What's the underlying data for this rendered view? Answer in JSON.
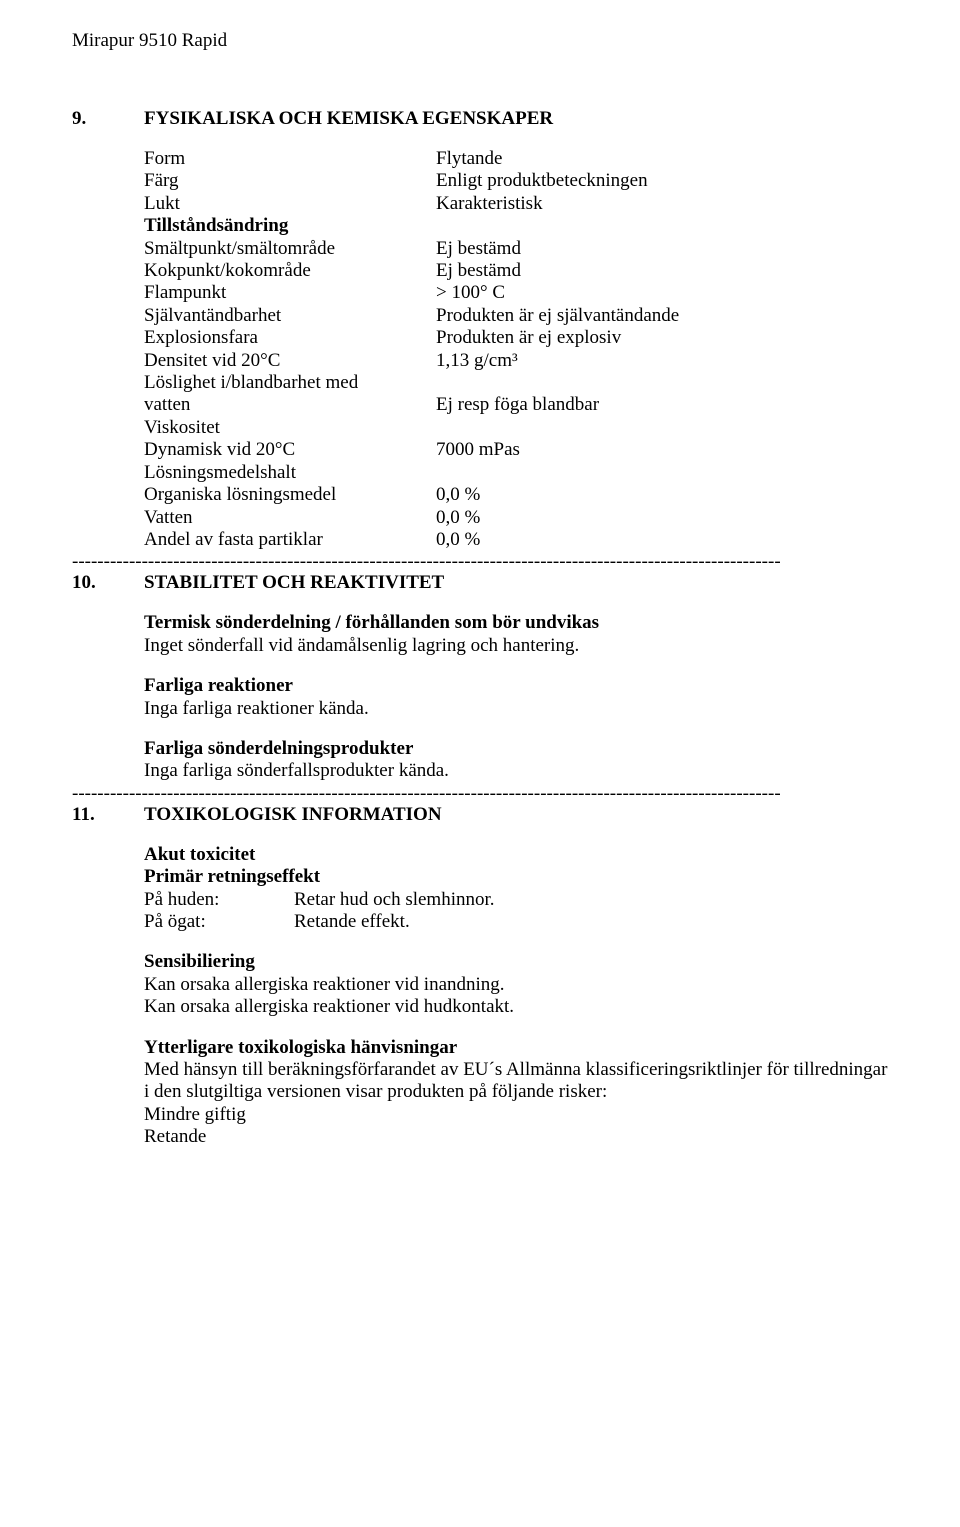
{
  "doc": {
    "title": "Mirapur 9510 Rapid"
  },
  "sec9": {
    "num": "9.",
    "heading": "FYSIKALISKA OCH KEMISKA EGENSKAPER",
    "rows": {
      "form_l": "Form",
      "form_v": "Flytande",
      "color_l": "Färg",
      "color_v": "Enligt produktbeteckningen",
      "odor_l": "Lukt",
      "odor_v": "Karakteristisk",
      "state_change": "Tillståndsändring",
      "melt_l": "Smältpunkt/smältområde",
      "melt_v": "Ej bestämd",
      "boil_l": "Kokpunkt/kokområde",
      "boil_v": "Ej bestämd",
      "flash_l": "Flampunkt",
      "flash_v": "> 100° C",
      "selfig_l": "Självantändbarhet",
      "selfig_v": "Produkten är ej självantändande",
      "expl_l": "Explosionsfara",
      "expl_v": "Produkten är ej explosiv",
      "dens_l": "Densitet vid 20°C",
      "dens_v": "1,13 g/cm³",
      "sol_l1": "Löslighet i/blandbarhet med",
      "sol_l2": "vatten",
      "sol_v": "Ej resp föga blandbar",
      "visc_h": "Viskositet",
      "dyn_l": "Dynamisk vid 20°C",
      "dyn_v": "7000 mPas",
      "solv_h": "Lösningsmedelshalt",
      "org_l": "Organiska lösningsmedel",
      "org_v": "0,0 %",
      "water_l": "Vatten",
      "water_v": "0,0 %",
      "solids_l": "Andel av fasta partiklar",
      "solids_v": "0,0 %"
    }
  },
  "sec10": {
    "num": "10.",
    "heading": "STABILITET OCH REAKTIVITET",
    "thermal_h": "Termisk sönderdelning / förhållanden som bör undvikas",
    "thermal_t": "Inget sönderfall vid ändamålsenlig lagring och hantering.",
    "react_h": "Farliga reaktioner",
    "react_t": "Inga farliga reaktioner kända.",
    "decomp_h": "Farliga sönderdelningsprodukter",
    "decomp_t": "Inga farliga sönderfallsprodukter kända."
  },
  "sec11": {
    "num": "11.",
    "heading": "TOXIKOLOGISK INFORMATION",
    "acute_h": "Akut toxicitet",
    "primary_h": "Primär retningseffekt",
    "skin_l": "På huden:",
    "skin_v": "Retar hud och slemhinnor.",
    "eye_l": "På ögat:",
    "eye_v": "Retande effekt.",
    "sens_h": "Sensibiliering",
    "sens_t1": "Kan orsaka allergiska reaktioner vid inandning.",
    "sens_t2": "Kan orsaka allergiska reaktioner vid hudkontakt.",
    "add_h": "Ytterligare toxikologiska hänvisningar",
    "add_t1": "Med hänsyn till beräkningsförfarandet av EU´s Allmänna klassificeringsriktlinjer för tillredningar i den slutgiltiga versionen visar produkten på följande risker:",
    "add_t2": "Mindre giftig",
    "add_t3": "Retande"
  },
  "dash": "----------------------------------------------------------------------------------------------------------------"
}
